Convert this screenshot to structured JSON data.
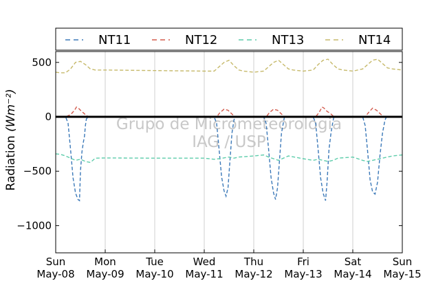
{
  "chart_data": {
    "type": "line",
    "ylabel": "Radiation",
    "ylabel_unit": "(Wm⁻²)",
    "ylim": [
      -1250,
      600
    ],
    "y_ticks": [
      500,
      0,
      -500,
      -1000
    ],
    "y_tick_labels": [
      "500",
      "0",
      "−500",
      "−1000"
    ],
    "x_ticks": [
      {
        "day": "Sun",
        "date": "May-08"
      },
      {
        "day": "Mon",
        "date": "May-09"
      },
      {
        "day": "Tue",
        "date": "May-10"
      },
      {
        "day": "Wed",
        "date": "May-11"
      },
      {
        "day": "Thu",
        "date": "May-12"
      },
      {
        "day": "Fri",
        "date": "May-13"
      },
      {
        "day": "Sat",
        "date": "May-14"
      },
      {
        "day": "Sun",
        "date": "May-15"
      }
    ],
    "xlim_days": [
      0,
      7
    ],
    "grid": "vertical",
    "zero_line": true,
    "legend_position": "top",
    "watermark": [
      "Grupo de Micrometeorologia",
      "IAG / USP"
    ],
    "series": [
      {
        "name": "NT11",
        "color": "#3a78b8",
        "points": [
          [
            0.0,
            0
          ],
          [
            0.2,
            0
          ],
          [
            0.25,
            -60
          ],
          [
            0.3,
            -300
          ],
          [
            0.35,
            -560
          ],
          [
            0.4,
            -700
          ],
          [
            0.45,
            -760
          ],
          [
            0.48,
            -770
          ],
          [
            0.5,
            -500
          ],
          [
            0.53,
            -320
          ],
          [
            0.56,
            -230
          ],
          [
            0.58,
            -180
          ],
          [
            0.6,
            -80
          ],
          [
            0.62,
            -20
          ],
          [
            0.66,
            0
          ],
          [
            1.0,
            0
          ],
          [
            2.0,
            0
          ],
          [
            3.0,
            0
          ],
          [
            3.2,
            0
          ],
          [
            3.25,
            -60
          ],
          [
            3.3,
            -300
          ],
          [
            3.35,
            -550
          ],
          [
            3.4,
            -680
          ],
          [
            3.44,
            -730
          ],
          [
            3.48,
            -650
          ],
          [
            3.52,
            -400
          ],
          [
            3.56,
            -150
          ],
          [
            3.6,
            -30
          ],
          [
            3.62,
            0
          ],
          [
            4.0,
            0
          ],
          [
            4.2,
            0
          ],
          [
            4.25,
            -60
          ],
          [
            4.3,
            -300
          ],
          [
            4.35,
            -560
          ],
          [
            4.4,
            -700
          ],
          [
            4.44,
            -760
          ],
          [
            4.48,
            -650
          ],
          [
            4.52,
            -400
          ],
          [
            4.56,
            -150
          ],
          [
            4.6,
            -50
          ],
          [
            4.62,
            0
          ],
          [
            5.0,
            0
          ],
          [
            5.2,
            0
          ],
          [
            5.25,
            -60
          ],
          [
            5.3,
            -300
          ],
          [
            5.35,
            -560
          ],
          [
            5.4,
            -700
          ],
          [
            5.45,
            -770
          ],
          [
            5.48,
            -600
          ],
          [
            5.52,
            -300
          ],
          [
            5.56,
            -150
          ],
          [
            5.6,
            -40
          ],
          [
            5.62,
            0
          ],
          [
            6.0,
            0
          ],
          [
            6.2,
            0
          ],
          [
            6.25,
            -80
          ],
          [
            6.3,
            -320
          ],
          [
            6.35,
            -580
          ],
          [
            6.4,
            -690
          ],
          [
            6.45,
            -710
          ],
          [
            6.5,
            -600
          ],
          [
            6.55,
            -350
          ],
          [
            6.6,
            -150
          ],
          [
            6.65,
            -30
          ],
          [
            6.68,
            0
          ],
          [
            7.0,
            0
          ]
        ]
      },
      {
        "name": "NT12",
        "color": "#d35a4c",
        "points": [
          [
            0.0,
            0
          ],
          [
            0.2,
            0
          ],
          [
            0.3,
            20
          ],
          [
            0.38,
            60
          ],
          [
            0.42,
            90
          ],
          [
            0.46,
            80
          ],
          [
            0.5,
            60
          ],
          [
            0.55,
            40
          ],
          [
            0.6,
            20
          ],
          [
            0.66,
            0
          ],
          [
            1.0,
            0
          ],
          [
            2.0,
            0
          ],
          [
            3.0,
            0
          ],
          [
            3.25,
            0
          ],
          [
            3.32,
            40
          ],
          [
            3.4,
            70
          ],
          [
            3.48,
            60
          ],
          [
            3.55,
            30
          ],
          [
            3.62,
            0
          ],
          [
            4.0,
            0
          ],
          [
            4.25,
            0
          ],
          [
            4.32,
            40
          ],
          [
            4.4,
            70
          ],
          [
            4.48,
            60
          ],
          [
            4.55,
            30
          ],
          [
            4.62,
            0
          ],
          [
            5.0,
            0
          ],
          [
            5.25,
            0
          ],
          [
            5.32,
            40
          ],
          [
            5.38,
            90
          ],
          [
            5.42,
            80
          ],
          [
            5.48,
            50
          ],
          [
            5.55,
            30
          ],
          [
            5.62,
            0
          ],
          [
            6.0,
            0
          ],
          [
            6.25,
            0
          ],
          [
            6.32,
            40
          ],
          [
            6.4,
            80
          ],
          [
            6.48,
            60
          ],
          [
            6.55,
            30
          ],
          [
            6.62,
            0
          ],
          [
            7.0,
            0
          ]
        ]
      },
      {
        "name": "NT13",
        "color": "#5cccaa",
        "points": [
          [
            0.0,
            -340
          ],
          [
            0.1,
            -345
          ],
          [
            0.2,
            -360
          ],
          [
            0.3,
            -380
          ],
          [
            0.4,
            -400
          ],
          [
            0.5,
            -390
          ],
          [
            0.6,
            -410
          ],
          [
            0.7,
            -420
          ],
          [
            0.8,
            -380
          ],
          [
            1.0,
            -378
          ],
          [
            2.0,
            -380
          ],
          [
            3.0,
            -380
          ],
          [
            3.2,
            -390
          ],
          [
            3.3,
            -385
          ],
          [
            3.5,
            -370
          ],
          [
            3.6,
            -380
          ],
          [
            3.7,
            -370
          ],
          [
            4.0,
            -360
          ],
          [
            4.2,
            -350
          ],
          [
            4.3,
            -370
          ],
          [
            4.5,
            -400
          ],
          [
            4.6,
            -380
          ],
          [
            4.7,
            -360
          ],
          [
            5.0,
            -385
          ],
          [
            5.2,
            -400
          ],
          [
            5.3,
            -390
          ],
          [
            5.5,
            -410
          ],
          [
            5.6,
            -400
          ],
          [
            5.7,
            -380
          ],
          [
            6.0,
            -370
          ],
          [
            6.2,
            -400
          ],
          [
            6.3,
            -410
          ],
          [
            6.5,
            -390
          ],
          [
            6.6,
            -380
          ],
          [
            6.8,
            -360
          ],
          [
            7.0,
            -350
          ]
        ]
      },
      {
        "name": "NT14",
        "color": "#c6b96a",
        "points": [
          [
            0.0,
            410
          ],
          [
            0.1,
            405
          ],
          [
            0.2,
            405
          ],
          [
            0.3,
            440
          ],
          [
            0.4,
            500
          ],
          [
            0.5,
            510
          ],
          [
            0.6,
            480
          ],
          [
            0.7,
            440
          ],
          [
            0.8,
            430
          ],
          [
            1.0,
            430
          ],
          [
            2.0,
            425
          ],
          [
            3.0,
            420
          ],
          [
            3.2,
            420
          ],
          [
            3.3,
            460
          ],
          [
            3.4,
            500
          ],
          [
            3.5,
            520
          ],
          [
            3.6,
            470
          ],
          [
            3.7,
            430
          ],
          [
            3.8,
            420
          ],
          [
            4.0,
            410
          ],
          [
            4.2,
            420
          ],
          [
            4.3,
            460
          ],
          [
            4.4,
            500
          ],
          [
            4.5,
            520
          ],
          [
            4.6,
            480
          ],
          [
            4.7,
            440
          ],
          [
            4.8,
            430
          ],
          [
            5.0,
            420
          ],
          [
            5.2,
            430
          ],
          [
            5.3,
            480
          ],
          [
            5.4,
            520
          ],
          [
            5.5,
            530
          ],
          [
            5.6,
            480
          ],
          [
            5.7,
            440
          ],
          [
            5.8,
            430
          ],
          [
            6.0,
            420
          ],
          [
            6.2,
            440
          ],
          [
            6.3,
            480
          ],
          [
            6.4,
            520
          ],
          [
            6.5,
            530
          ],
          [
            6.6,
            490
          ],
          [
            6.7,
            450
          ],
          [
            6.8,
            440
          ],
          [
            7.0,
            430
          ]
        ]
      }
    ]
  }
}
